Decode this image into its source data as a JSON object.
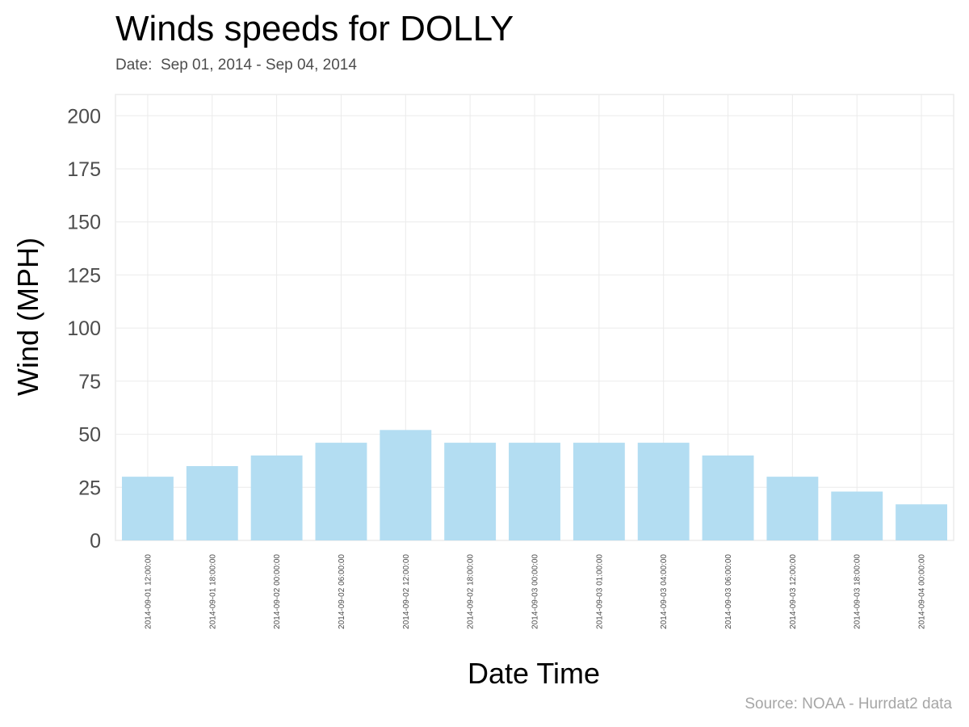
{
  "chart_data": {
    "type": "bar",
    "title": "Winds speeds for DOLLY",
    "subtitle": "Date:  Sep 01, 2014 - Sep 04, 2014",
    "caption": "Source: NOAA - Hurrdat2 data",
    "xlabel": "Date Time",
    "ylabel": "Wind (MPH)",
    "categories": [
      "2014-09-01 12:00:00",
      "2014-09-01 18:00:00",
      "2014-09-02 00:00:00",
      "2014-09-02 06:00:00",
      "2014-09-02 12:00:00",
      "2014-09-02 18:00:00",
      "2014-09-03 00:00:00",
      "2014-09-03 01:00:00",
      "2014-09-03 04:00:00",
      "2014-09-03 06:00:00",
      "2014-09-03 12:00:00",
      "2014-09-03 18:00:00",
      "2014-09-04 00:00:00"
    ],
    "values": [
      30,
      35,
      40,
      46,
      52,
      46,
      46,
      46,
      46,
      40,
      30,
      23,
      17
    ],
    "ylim": [
      0,
      210
    ],
    "yticks": [
      0,
      25,
      50,
      75,
      100,
      125,
      150,
      175,
      200
    ],
    "grid": true,
    "bar_color": "#b3ddf2",
    "grid_color": "#ebebeb"
  }
}
